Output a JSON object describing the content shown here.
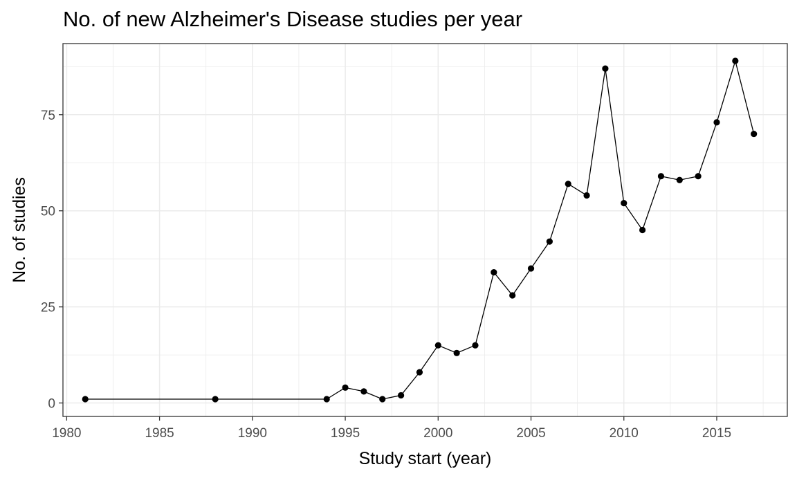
{
  "chart_data": {
    "type": "line",
    "title": "No. of new Alzheimer's Disease studies per year",
    "xlabel": "Study start (year)",
    "ylabel": "No. of studies",
    "xlim": [
      1979.8,
      2018.8
    ],
    "ylim": [
      -3.5,
      93.5
    ],
    "x_ticks": [
      1980,
      1985,
      1990,
      1995,
      2000,
      2005,
      2010,
      2015
    ],
    "y_ticks": [
      0,
      25,
      50,
      75
    ],
    "grid": true,
    "legend": "none",
    "colors": {
      "line": "#000000",
      "grid": "#ebebeb",
      "border": "#333333"
    },
    "series": [
      {
        "x": [
          1981,
          1988,
          1994,
          1995,
          1996,
          1997,
          1998,
          1999,
          2000,
          2001,
          2002,
          2003,
          2004,
          2005,
          2006,
          2007,
          2008,
          2009,
          2010,
          2011,
          2012,
          2013,
          2014,
          2015,
          2016,
          2017
        ],
        "y": [
          1,
          1,
          1,
          4,
          3,
          1,
          2,
          8,
          15,
          13,
          15,
          34,
          28,
          35,
          42,
          57,
          54,
          87,
          52,
          45,
          59,
          58,
          59,
          73,
          89,
          70
        ]
      }
    ]
  }
}
